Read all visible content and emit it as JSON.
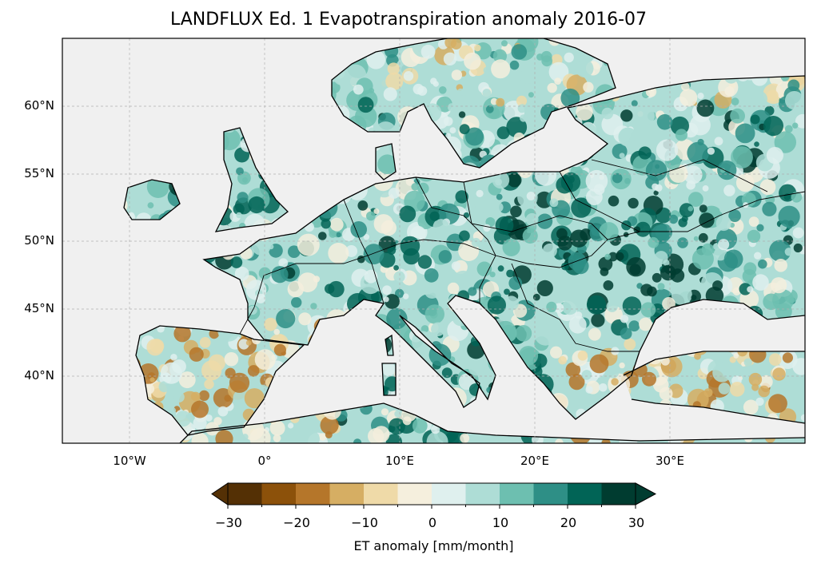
{
  "title": "LANDFLUX Ed. 1 Evapotranspiration anomaly 2016-07",
  "map": {
    "extent_lon": [
      -15,
      40
    ],
    "extent_lat": [
      35,
      65
    ],
    "lat_ticks": [
      "60°N",
      "55°N",
      "50°N",
      "45°N",
      "40°N"
    ],
    "lon_ticks": [
      "10°W",
      "0°",
      "10°E",
      "20°E",
      "30°E"
    ],
    "ocean_color": "#f0f0f0",
    "coastline_color": "#000000"
  },
  "colorbar": {
    "label": "ET anomaly [mm/month]",
    "ticks": [
      "−30",
      "−20",
      "−10",
      "0",
      "10",
      "20",
      "30"
    ],
    "levels": [
      -30,
      -25,
      -20,
      -15,
      -10,
      -5,
      0,
      5,
      10,
      15,
      20,
      25,
      30
    ],
    "colors": [
      "#543005",
      "#8c510a",
      "#b5762a",
      "#d6ae63",
      "#efdaa8",
      "#f5efdd",
      "#dff0ee",
      "#aeddd6",
      "#6dbfb0",
      "#2e8f86",
      "#016456",
      "#003c30"
    ],
    "extend": "both"
  }
}
